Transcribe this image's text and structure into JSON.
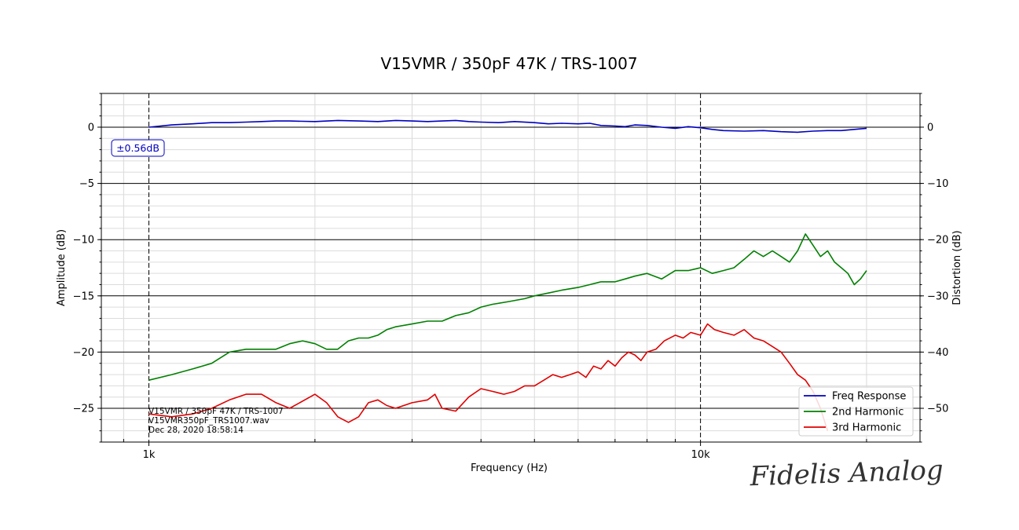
{
  "chart_data": {
    "type": "line",
    "title": "V15VMR / 350pF 47K / TRS-1007",
    "xlabel": "Frequency (Hz)",
    "ylabel_left": "Amplitude (dB)",
    "ylabel_right": "Distortion (dB)",
    "x_scale": "log",
    "xlim": [
      820,
      25000
    ],
    "ylim_left": [
      -28,
      3
    ],
    "ylim_right": [
      -56,
      6
    ],
    "x_ticks": [
      {
        "value": 1000,
        "label": "1k"
      },
      {
        "value": 10000,
        "label": "10k"
      }
    ],
    "y_ticks_left": [
      0,
      -5,
      -10,
      -15,
      -20,
      -25
    ],
    "y_ticks_right": [
      0,
      -10,
      -20,
      -30,
      -40,
      -50
    ],
    "grid": true,
    "legend_position": "lower-right",
    "badge": "±0.56dB",
    "annotation_lines": [
      "V15VMR / 350pF 47K / TRS-1007",
      "V15VMR350pF_TRS1007.wav",
      "Dec 28, 2020 18:58:14"
    ],
    "series": [
      {
        "name": "Freq Response",
        "axis": "left",
        "color": "#0000c0",
        "x": [
          1000,
          1100,
          1200,
          1300,
          1400,
          1500,
          1600,
          1700,
          1800,
          2000,
          2200,
          2400,
          2600,
          2800,
          3000,
          3200,
          3400,
          3600,
          3800,
          4000,
          4300,
          4600,
          5000,
          5300,
          5600,
          6000,
          6300,
          6600,
          7000,
          7300,
          7600,
          8000,
          8500,
          9000,
          9500,
          10000,
          10500,
          11000,
          12000,
          13000,
          14000,
          15000,
          16000,
          17000,
          18000,
          19000,
          20000
        ],
        "y": [
          0.0,
          0.2,
          0.3,
          0.4,
          0.4,
          0.45,
          0.5,
          0.55,
          0.55,
          0.5,
          0.6,
          0.55,
          0.5,
          0.6,
          0.55,
          0.5,
          0.55,
          0.6,
          0.5,
          0.45,
          0.4,
          0.5,
          0.4,
          0.3,
          0.35,
          0.3,
          0.35,
          0.15,
          0.1,
          0.05,
          0.2,
          0.15,
          0.0,
          -0.1,
          0.05,
          -0.05,
          -0.2,
          -0.3,
          -0.35,
          -0.3,
          -0.4,
          -0.45,
          -0.35,
          -0.3,
          -0.3,
          -0.2,
          -0.1
        ]
      },
      {
        "name": "2nd Harmonic",
        "axis": "right",
        "color": "#008000",
        "x": [
          1000,
          1100,
          1200,
          1300,
          1400,
          1500,
          1600,
          1700,
          1800,
          1900,
          2000,
          2100,
          2200,
          2300,
          2400,
          2500,
          2600,
          2700,
          2800,
          3000,
          3200,
          3400,
          3600,
          3800,
          4000,
          4200,
          4500,
          4800,
          5000,
          5300,
          5600,
          6000,
          6300,
          6600,
          7000,
          7300,
          7600,
          8000,
          8500,
          9000,
          9500,
          10000,
          10500,
          11000,
          11500,
          12000,
          12500,
          13000,
          13500,
          14000,
          14500,
          15000,
          15500,
          16000,
          16500,
          17000,
          17500,
          18000,
          18500,
          19000,
          19500,
          20000
        ],
        "y": [
          -45,
          -44,
          -43,
          -42,
          -40,
          -39.5,
          -39.5,
          -39.5,
          -38.5,
          -38,
          -38.5,
          -39.5,
          -39.5,
          -38,
          -37.5,
          -37.5,
          -37,
          -36,
          -35.5,
          -35,
          -34.5,
          -34.5,
          -33.5,
          -33,
          -32,
          -31.5,
          -31,
          -30.5,
          -30,
          -29.5,
          -29,
          -28.5,
          -28,
          -27.5,
          -27.5,
          -27,
          -26.5,
          -26,
          -27,
          -25.5,
          -25.5,
          -25,
          -26,
          -25.5,
          -25,
          -23.5,
          -22,
          -23,
          -22,
          -23,
          -24,
          -22,
          -19,
          -21,
          -23,
          -22,
          -24,
          -25,
          -26,
          -28,
          -27,
          -25.5
        ]
      },
      {
        "name": "3rd Harmonic",
        "axis": "right",
        "color": "#e00000",
        "x": [
          1000,
          1100,
          1200,
          1300,
          1400,
          1500,
          1600,
          1700,
          1800,
          2000,
          2100,
          2200,
          2300,
          2400,
          2500,
          2600,
          2700,
          2800,
          3000,
          3200,
          3300,
          3400,
          3600,
          3800,
          4000,
          4200,
          4400,
          4600,
          4800,
          5000,
          5200,
          5400,
          5600,
          5800,
          6000,
          6200,
          6400,
          6600,
          6800,
          7000,
          7200,
          7400,
          7600,
          7800,
          8000,
          8300,
          8600,
          9000,
          9300,
          9600,
          10000,
          10300,
          10600,
          11000,
          11500,
          12000,
          12500,
          13000,
          13500,
          14000,
          14500,
          15000,
          15500,
          16000,
          16500,
          17000
        ],
        "y": [
          -51,
          -51.5,
          -51,
          -50,
          -48.5,
          -47.5,
          -47.5,
          -49,
          -50,
          -47.5,
          -49,
          -51.5,
          -52.5,
          -51.5,
          -49,
          -48.5,
          -49.5,
          -50,
          -49,
          -48.5,
          -47.5,
          -50,
          -50.5,
          -48,
          -46.5,
          -47,
          -47.5,
          -47,
          -46,
          -46,
          -45,
          -44,
          -44.5,
          -44,
          -43.5,
          -44.5,
          -42.5,
          -43,
          -41.5,
          -42.5,
          -41,
          -40,
          -40.5,
          -41.5,
          -40,
          -39.5,
          -38,
          -37,
          -37.5,
          -36.5,
          -37,
          -35,
          -36,
          -36.5,
          -37,
          -36,
          -37.5,
          -38,
          -39,
          -40,
          -42,
          -44,
          -45,
          -47,
          -50,
          -54
        ]
      }
    ]
  },
  "watermark": "Fidelis Analog"
}
